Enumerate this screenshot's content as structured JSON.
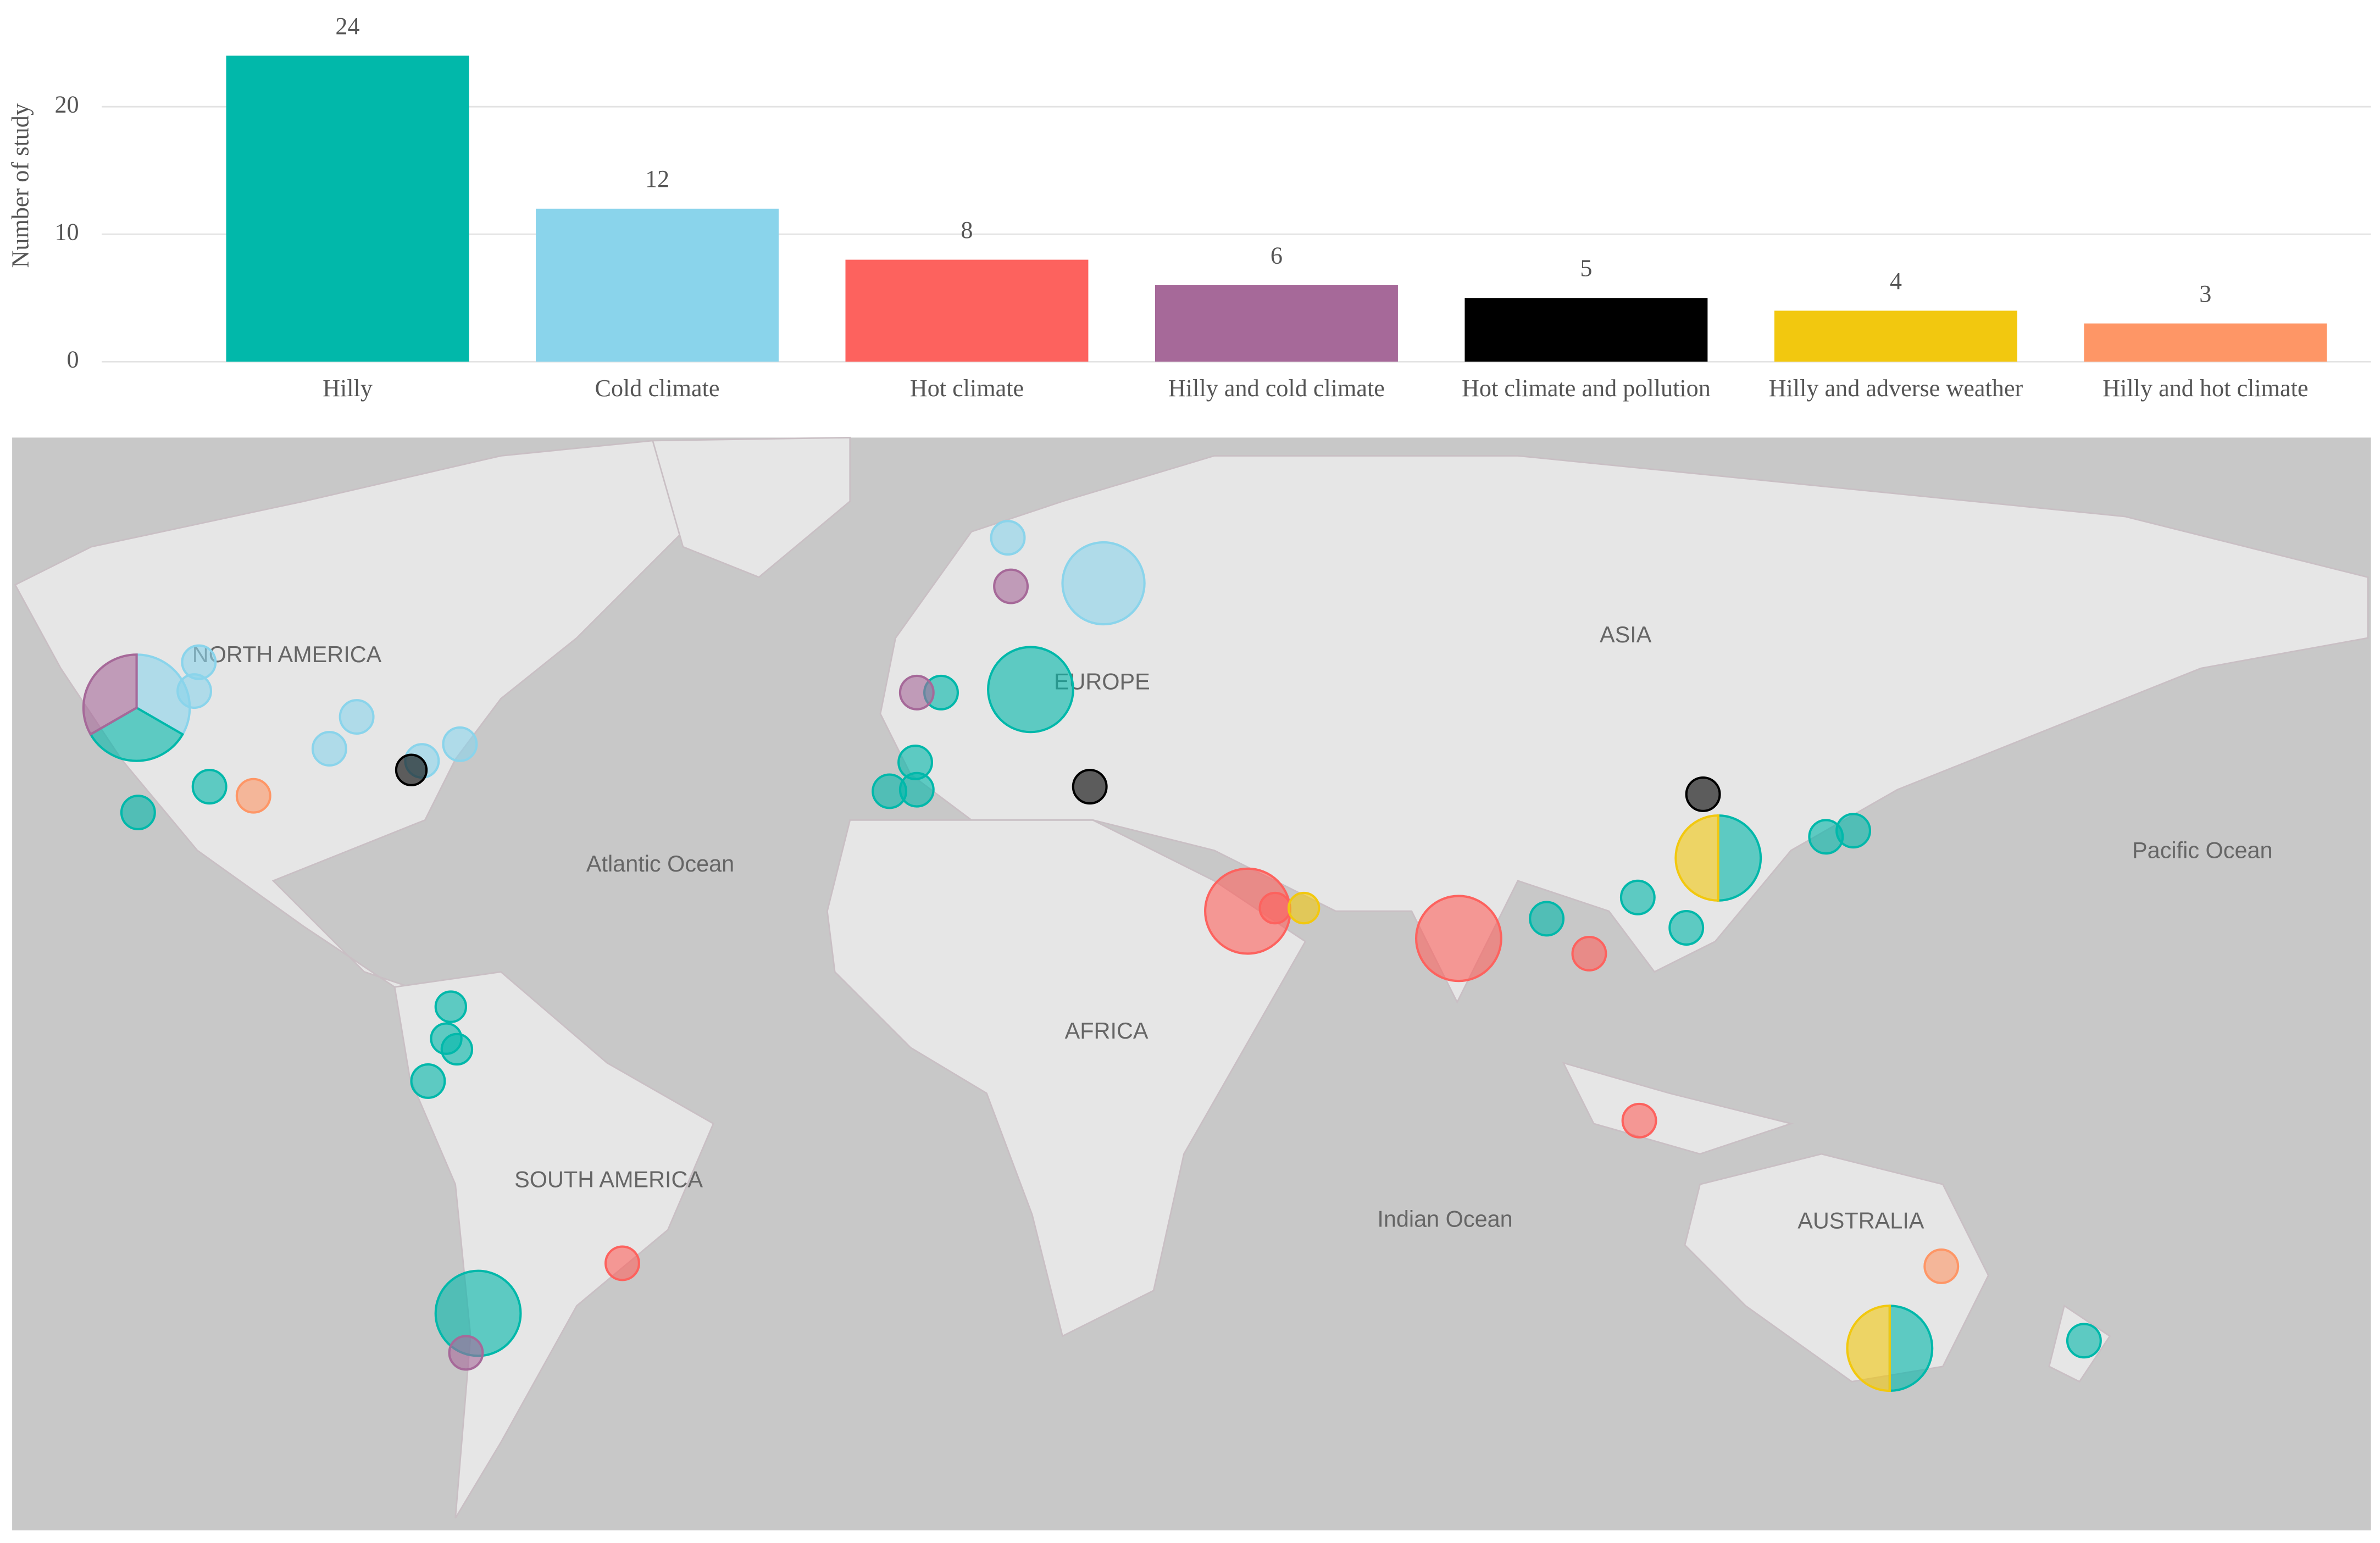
{
  "chart_data": {
    "type": "bar",
    "y_label": "Number of study",
    "categories": [
      "Hilly",
      "Cold climate",
      "Hot climate",
      "Hilly and cold climate",
      "Hot climate and pollution",
      "Hilly and adverse weather",
      "Hilly and hot climate"
    ],
    "values": [
      24,
      12,
      8,
      6,
      5,
      4,
      3
    ],
    "colors": [
      "#01b8aa",
      "#8ad4eb",
      "#fd625e",
      "#a66999",
      "#000000",
      "#f2c80f",
      "#fe9666"
    ],
    "ylim": [
      0,
      28
    ],
    "yticks": [
      0,
      10,
      20
    ],
    "grid": true
  },
  "map": {
    "labels": [
      "NORTH AMERICA",
      "EUROPE",
      "ASIA",
      "Atlantic Ocean",
      "Pacific Ocean",
      "AFRICA",
      "SOUTH AMERICA",
      "Indian Ocean",
      "AUSTRALIA"
    ]
  }
}
